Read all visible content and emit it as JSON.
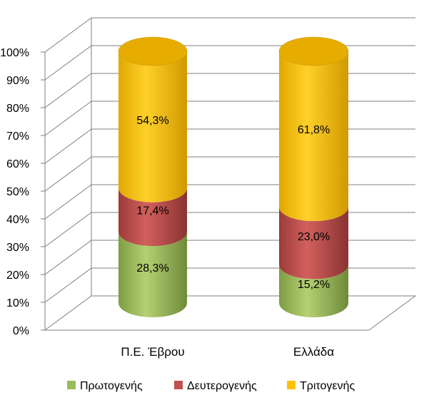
{
  "chart_data": {
    "type": "bar",
    "stacked": true,
    "style": "3d-cylinder",
    "categories": [
      "Π.Ε. Έβρου",
      "Ελλάδα"
    ],
    "series": [
      {
        "name": "Πρωτογενής",
        "values": [
          28.3,
          15.2
        ],
        "labels": [
          "28,3%",
          "15,2%"
        ],
        "color": "#9bbb59"
      },
      {
        "name": "Δευτερογενής",
        "values": [
          17.4,
          23.0
        ],
        "labels": [
          "17,4%",
          "23,0%"
        ],
        "color": "#c0504d"
      },
      {
        "name": "Τριτογενής",
        "values": [
          54.3,
          61.8
        ],
        "labels": [
          "54,3%",
          "61,8%"
        ],
        "color": "#ffc000"
      }
    ],
    "yticks": [
      "0%",
      "10%",
      "20%",
      "30%",
      "40%",
      "50%",
      "60%",
      "70%",
      "80%",
      "90%",
      "100%"
    ],
    "ylim": [
      0,
      100
    ],
    "grid": true,
    "legend_position": "bottom"
  }
}
